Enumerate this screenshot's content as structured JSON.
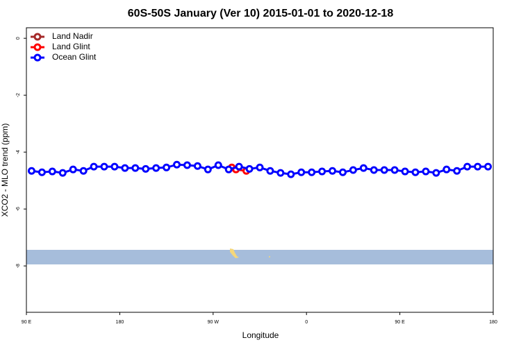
{
  "chart_data": {
    "type": "line",
    "title": "60S-50S January (Ver 10)   2015-01-01 to 2020-12-18",
    "x_label": "Longitude",
    "y_label": "XCO2 - MLO trend (ppm)",
    "xlim": [
      90,
      540
    ],
    "ylim": [
      -9.63,
      0.37
    ],
    "xticks": [
      {
        "value": 90,
        "label": "90 E"
      },
      {
        "value": 180,
        "label": "180"
      },
      {
        "value": 270,
        "label": "90 W"
      },
      {
        "value": 360,
        "label": "0"
      },
      {
        "value": 450,
        "label": "90 E"
      },
      {
        "value": 540,
        "label": "180"
      }
    ],
    "yticks": [
      0,
      -2,
      -4,
      -6,
      -8
    ],
    "legend": "top-left",
    "series": [
      {
        "name": "Land Nadir",
        "color": "#a52a2a",
        "x": [],
        "values": []
      },
      {
        "name": "Land Glint",
        "color": "#ff0000",
        "x": [
          288,
          292,
          302
        ],
        "values": [
          -4.54,
          -4.61,
          -4.66
        ]
      },
      {
        "name": "Ocean Glint",
        "color": "#0000ff",
        "x": [
          95,
          105,
          115,
          125,
          135,
          145,
          155,
          165,
          175,
          185,
          195,
          205,
          215,
          225,
          235,
          245,
          255,
          265,
          275,
          285,
          295,
          305,
          315,
          325,
          335,
          345,
          355,
          365,
          375,
          385,
          395,
          405,
          415,
          425,
          435,
          445,
          455,
          465,
          475,
          485,
          495,
          505,
          515,
          525,
          535
        ],
        "values": [
          -4.66,
          -4.71,
          -4.68,
          -4.73,
          -4.61,
          -4.66,
          -4.51,
          -4.51,
          -4.51,
          -4.56,
          -4.56,
          -4.59,
          -4.56,
          -4.54,
          -4.44,
          -4.46,
          -4.49,
          -4.61,
          -4.46,
          -4.61,
          -4.51,
          -4.59,
          -4.54,
          -4.66,
          -4.73,
          -4.78,
          -4.71,
          -4.71,
          -4.68,
          -4.66,
          -4.71,
          -4.63,
          -4.56,
          -4.63,
          -4.63,
          -4.63,
          -4.68,
          -4.71,
          -4.68,
          -4.73,
          -4.61,
          -4.66,
          -4.51,
          -4.51,
          -4.51
        ]
      }
    ]
  }
}
